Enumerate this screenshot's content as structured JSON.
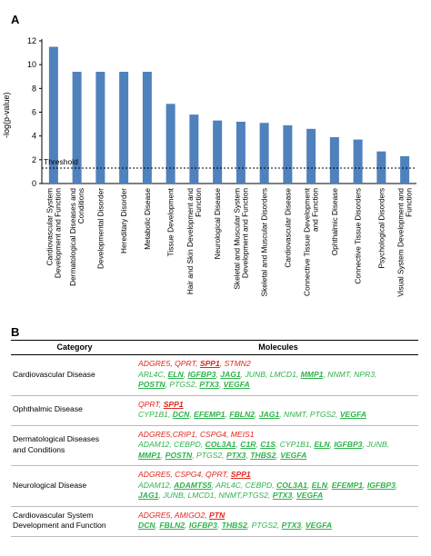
{
  "panel_a": {
    "label": "A"
  },
  "panel_b": {
    "label": "B"
  },
  "colors": {
    "bar": "#4f81bd",
    "red_text": "#e0261c",
    "green_text": "#2db34a"
  },
  "chart_data": {
    "type": "bar",
    "ylabel": "-log(p-value)",
    "ylim": [
      0,
      12
    ],
    "yticks": [
      0,
      2,
      4,
      6,
      8,
      10,
      12
    ],
    "threshold": {
      "label": "Threshold",
      "value": 1.3
    },
    "grid": false,
    "categories": [
      "Cardiovascular System Development and Function",
      "Dermatological Diseases and Conditions",
      "Developmental Disorder",
      "Hereditary Disorder",
      "Metabolic Disease",
      "Tissue Development",
      "Hair and Skin Development and Function",
      "Neurological Disease",
      "Skeletal and Muscular System Development and Function",
      "Skeletal and Muscular Disorders",
      "Cardiovascular Disease",
      "Connective Tissue Development and Function",
      "Ophthalmic Disease",
      "Connective Tissue Disorders",
      "Psychological Disorders",
      "Visual System Development and Function"
    ],
    "category_lines": [
      [
        "Cardiovascular System",
        "Development and Function"
      ],
      [
        "Dermatological Diseases and",
        "Conditions"
      ],
      [
        "Developmental Disorder"
      ],
      [
        "Hereditary Disorder"
      ],
      [
        "Metabolic Disease"
      ],
      [
        "Tissue Development"
      ],
      [
        "Hair and Skin Development and",
        "Function"
      ],
      [
        "Neurological Disease"
      ],
      [
        "Skeletal and Muscular System",
        "Development and Function"
      ],
      [
        "Skeletal and Muscular Disorders"
      ],
      [
        "Cardiovascular Disease"
      ],
      [
        "Connective Tissue Development",
        "and Function"
      ],
      [
        "Ophthalmic Disease"
      ],
      [
        "Connective Tissue Disorders"
      ],
      [
        "Psychological Disorders"
      ],
      [
        "Visual System Development and",
        "Function"
      ]
    ],
    "values": [
      11.5,
      9.4,
      9.4,
      9.4,
      9.4,
      6.7,
      5.8,
      5.3,
      5.2,
      5.1,
      4.9,
      4.6,
      3.9,
      3.7,
      2.7,
      2.3
    ]
  },
  "table": {
    "headers": {
      "category": "Category",
      "molecules": "Molecules"
    },
    "rows": [
      {
        "category": [
          "Cardiovascular Disease"
        ],
        "lines": [
          [
            {
              "t": "ADGRE5",
              "c": "red"
            },
            {
              "t": ", ",
              "c": "red"
            },
            {
              "t": "QPRT",
              "c": "red"
            },
            {
              "t": ", ",
              "c": "red"
            },
            {
              "t": "SPP1",
              "c": "red",
              "u": true
            },
            {
              "t": ", ",
              "c": "red"
            },
            {
              "t": "STMN2",
              "c": "red"
            }
          ],
          [
            {
              "t": "ARL4C, ",
              "c": "grn"
            },
            {
              "t": "ELN",
              "c": "grn",
              "u": true
            },
            {
              "t": ", ",
              "c": "grn"
            },
            {
              "t": "IGFBP3",
              "c": "grn",
              "u": true
            },
            {
              "t": ", ",
              "c": "grn"
            },
            {
              "t": "JAG1",
              "c": "grn",
              "u": true
            },
            {
              "t": ", JUNB, LMCD1, ",
              "c": "grn"
            },
            {
              "t": "MMP1",
              "c": "grn",
              "u": true
            },
            {
              "t": ", NNMT, NPR3,",
              "c": "grn"
            }
          ],
          [
            {
              "t": "POSTN",
              "c": "grn",
              "u": true
            },
            {
              "t": ", PTGS2, ",
              "c": "grn"
            },
            {
              "t": "PTX3",
              "c": "grn",
              "u": true
            },
            {
              "t": ", ",
              "c": "grn"
            },
            {
              "t": "VEGFA",
              "c": "grn",
              "u": true
            }
          ]
        ]
      },
      {
        "category": [
          "Ophthalmic Disease"
        ],
        "lines": [
          [
            {
              "t": "QPRT, ",
              "c": "red"
            },
            {
              "t": "SPP1",
              "c": "red",
              "u": true
            }
          ],
          [
            {
              "t": "CYP1B1, ",
              "c": "grn"
            },
            {
              "t": "DCN",
              "c": "grn",
              "u": true
            },
            {
              "t": ", ",
              "c": "grn"
            },
            {
              "t": "EFEMP1",
              "c": "grn",
              "u": true
            },
            {
              "t": ", ",
              "c": "grn"
            },
            {
              "t": "FBLN2",
              "c": "grn",
              "u": true
            },
            {
              "t": ", ",
              "c": "grn"
            },
            {
              "t": "JAG1",
              "c": "grn",
              "u": true
            },
            {
              "t": ", NNMT, PTGS2, ",
              "c": "grn"
            },
            {
              "t": "VEGFA",
              "c": "grn",
              "u": true
            }
          ]
        ]
      },
      {
        "category": [
          "Dermatological Diseases",
          "and Conditions"
        ],
        "lines": [
          [
            {
              "t": "ADGRE5,CRIP1, CSPG4, MEIS1",
              "c": "red"
            }
          ],
          [
            {
              "t": "ADAM12, CEBPD, ",
              "c": "grn"
            },
            {
              "t": "COL3A1",
              "c": "grn",
              "u": true
            },
            {
              "t": ", ",
              "c": "grn"
            },
            {
              "t": "C1R",
              "c": "grn",
              "u": true
            },
            {
              "t": ", ",
              "c": "grn"
            },
            {
              "t": "C1S",
              "c": "grn",
              "u": true
            },
            {
              "t": ", CYP1B1, ",
              "c": "grn"
            },
            {
              "t": "ELN",
              "c": "grn",
              "u": true
            },
            {
              "t": ", ",
              "c": "grn"
            },
            {
              "t": "IGFBP3",
              "c": "grn",
              "u": true
            },
            {
              "t": ", JUNB,",
              "c": "grn"
            }
          ],
          [
            {
              "t": "MMP1",
              "c": "grn",
              "u": true
            },
            {
              "t": ", ",
              "c": "grn"
            },
            {
              "t": "POSTN",
              "c": "grn",
              "u": true
            },
            {
              "t": ", PTGS2, ",
              "c": "grn"
            },
            {
              "t": "PTX3",
              "c": "grn",
              "u": true
            },
            {
              "t": ", ",
              "c": "grn"
            },
            {
              "t": "THBS2",
              "c": "grn",
              "u": true
            },
            {
              "t": ", ",
              "c": "grn"
            },
            {
              "t": "VEGFA",
              "c": "grn",
              "u": true
            }
          ]
        ]
      },
      {
        "category": [
          "Neurological Disease"
        ],
        "lines": [
          [
            {
              "t": "ADGRE5, CSPG4, QPRT, ",
              "c": "red"
            },
            {
              "t": "SPP1",
              "c": "red",
              "u": true
            }
          ],
          [
            {
              "t": "ADAM12, ",
              "c": "grn"
            },
            {
              "t": "ADAMTS5",
              "c": "grn",
              "u": true
            },
            {
              "t": ", ARL4C, CEBPD, ",
              "c": "grn"
            },
            {
              "t": "COL3A1",
              "c": "grn",
              "u": true
            },
            {
              "t": ", ",
              "c": "grn"
            },
            {
              "t": "ELN",
              "c": "grn",
              "u": true
            },
            {
              "t": ", ",
              "c": "grn"
            },
            {
              "t": "EFEMP1",
              "c": "grn",
              "u": true
            },
            {
              "t": ", ",
              "c": "grn"
            },
            {
              "t": "IGFBP3",
              "c": "grn",
              "u": true
            },
            {
              "t": ",",
              "c": "grn"
            }
          ],
          [
            {
              "t": "JAG1",
              "c": "grn",
              "u": true
            },
            {
              "t": ", JUNB, LMCD1, NNMT,PTGS2, ",
              "c": "grn"
            },
            {
              "t": "PTX3",
              "c": "grn",
              "u": true
            },
            {
              "t": ", ",
              "c": "grn"
            },
            {
              "t": "VEGFA",
              "c": "grn",
              "u": true
            }
          ]
        ]
      },
      {
        "category": [
          "Cardiovascular System",
          "Development and Function"
        ],
        "lines": [
          [
            {
              "t": "ADGRE5, AMIGO2, ",
              "c": "red"
            },
            {
              "t": "PTN",
              "c": "red",
              "u": true
            }
          ],
          [
            {
              "t": "DCN",
              "c": "grn",
              "u": true
            },
            {
              "t": ", ",
              "c": "grn"
            },
            {
              "t": "FBLN2",
              "c": "grn",
              "u": true
            },
            {
              "t": ", ",
              "c": "grn"
            },
            {
              "t": "IGFBP3",
              "c": "grn",
              "u": true
            },
            {
              "t": ", ",
              "c": "grn"
            },
            {
              "t": "THBS2",
              "c": "grn",
              "u": true
            },
            {
              "t": ", PTGS2, ",
              "c": "grn"
            },
            {
              "t": "PTX3",
              "c": "grn",
              "u": true
            },
            {
              "t": ", ",
              "c": "grn"
            },
            {
              "t": "VEGFA",
              "c": "grn",
              "u": true
            }
          ]
        ]
      }
    ]
  }
}
